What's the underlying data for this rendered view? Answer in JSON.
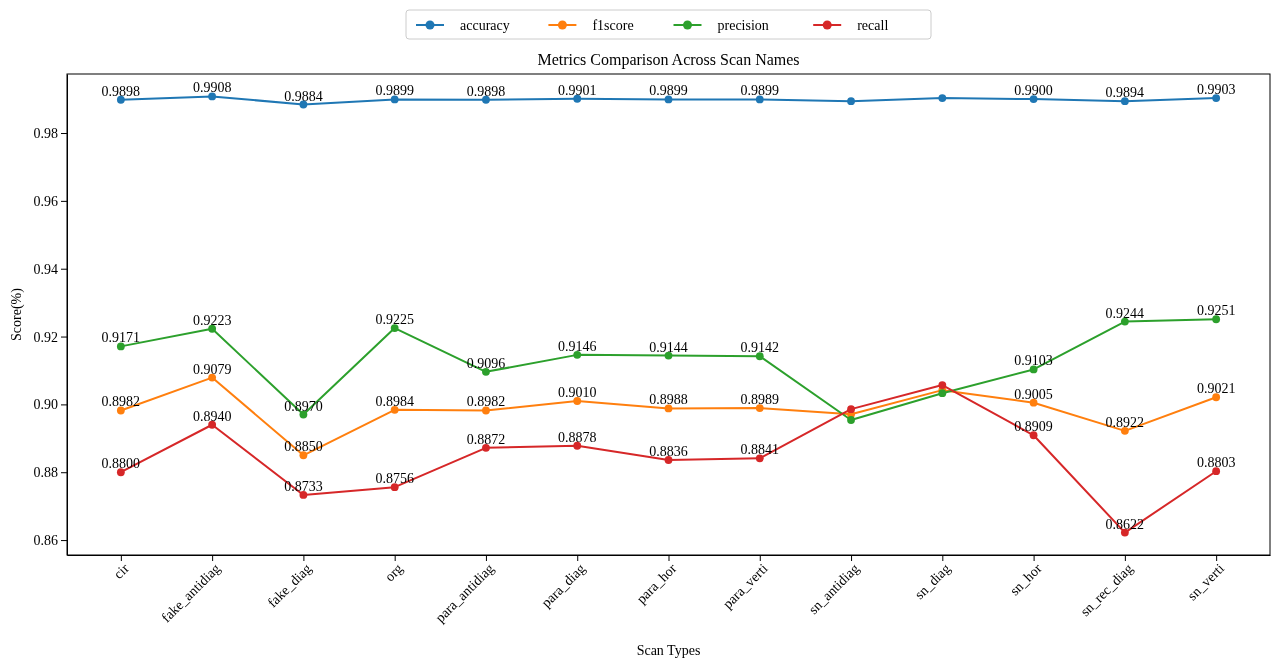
{
  "chart_data": {
    "type": "line",
    "title": "Metrics Comparison Across Scan Names",
    "xlabel": "Scan Types",
    "ylabel": "Score(%)",
    "categories": [
      "cir",
      "fake_antidiag",
      "fake_diag",
      "org",
      "para_antidiag",
      "para_diag",
      "para_hor",
      "para_verti",
      "sn_antidiag",
      "sn_diag",
      "sn_hor",
      "sn_rec_diag",
      "sn_verti"
    ],
    "ylim": [
      0.8556,
      0.9974
    ],
    "yticks": [
      {
        "value": 0.86,
        "label": "0.86"
      },
      {
        "value": 0.88,
        "label": "0.88"
      },
      {
        "value": 0.9,
        "label": "0.90"
      },
      {
        "value": 0.92,
        "label": "0.92"
      },
      {
        "value": 0.94,
        "label": "0.94"
      },
      {
        "value": 0.96,
        "label": "0.96"
      },
      {
        "value": 0.98,
        "label": "0.98"
      }
    ],
    "grid": false,
    "legend": "top",
    "marker": "circle",
    "line_style": "solid",
    "series": [
      {
        "name": "accuracy",
        "color": "#1f77b4",
        "values": [
          0.9898,
          0.9908,
          0.9884,
          0.9899,
          0.9898,
          0.9901,
          0.9899,
          0.9899,
          0.9894,
          0.9903,
          0.99,
          0.9894,
          0.9903
        ],
        "value_labels": [
          "0.9898",
          "0.9908",
          "0.9884",
          "0.9899",
          "0.9898",
          "0.9901",
          "0.9899",
          "0.9899",
          null,
          null,
          "0.9900",
          "0.9894",
          "0.9903"
        ]
      },
      {
        "name": "f1score",
        "color": "#ff7f0e",
        "values": [
          0.8982,
          0.9079,
          0.885,
          0.8984,
          0.8982,
          0.901,
          0.8988,
          0.8989,
          0.8971,
          0.9042,
          0.9005,
          0.8922,
          0.9021
        ],
        "value_labels": [
          "0.8982",
          "0.9079",
          "0.8850",
          "0.8984",
          "0.8982",
          "0.9010",
          "0.8988",
          "0.8989",
          null,
          null,
          "0.9005",
          "0.8922",
          "0.9021"
        ]
      },
      {
        "name": "precision",
        "color": "#2ca02c",
        "values": [
          0.9171,
          0.9223,
          0.897,
          0.9225,
          0.9096,
          0.9146,
          0.9144,
          0.9142,
          0.8954,
          0.9033,
          0.9103,
          0.9244,
          0.9251
        ],
        "value_labels": [
          "0.9171",
          "0.9223",
          "0.8970",
          "0.9225",
          "0.9096",
          "0.9146",
          "0.9144",
          "0.9142",
          null,
          null,
          "0.9103",
          "0.9244",
          "0.9251"
        ]
      },
      {
        "name": "recall",
        "color": "#d62728",
        "values": [
          0.88,
          0.894,
          0.8733,
          0.8756,
          0.8872,
          0.8878,
          0.8836,
          0.8841,
          0.8986,
          0.9057,
          0.8909,
          0.8622,
          0.8803
        ],
        "value_labels": [
          "0.8800",
          "0.8940",
          "0.8733",
          "0.8756",
          "0.8872",
          "0.8878",
          "0.8836",
          "0.8841",
          null,
          null,
          "0.8909",
          "0.8622",
          "0.8803"
        ]
      }
    ]
  }
}
